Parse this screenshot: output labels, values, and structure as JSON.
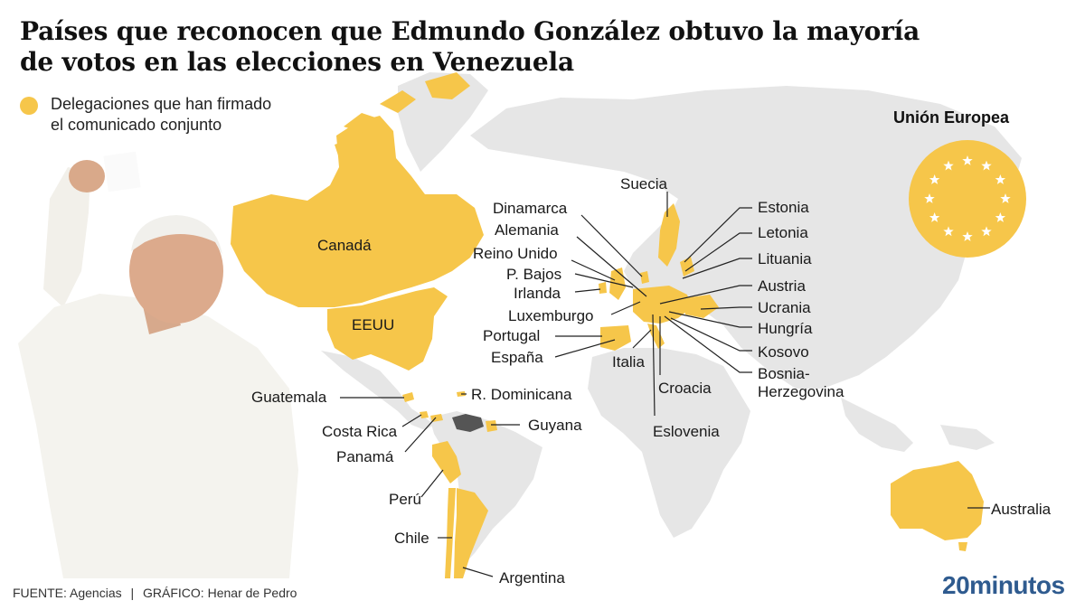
{
  "title": {
    "line1": "Países que reconocen que Edmundo González obtuvo la mayoría",
    "line2": "de votos en las elecciones en Venezuela"
  },
  "legend": {
    "line1": "Delegaciones que han firmado",
    "line2": "el comunicado conjunto",
    "color": "#f6c64a"
  },
  "eu": {
    "title": "Unión Europea",
    "star_color": "#ffffff",
    "star_count": 12
  },
  "colors": {
    "signed": "#f6c64a",
    "land": "#e6e6e6",
    "venezuela": "#555555",
    "leader": "#222222"
  },
  "countries": {
    "canada": "Canadá",
    "eeuu": "EEUU",
    "guatemala": "Guatemala",
    "costa_rica": "Costa Rica",
    "panama": "Panamá",
    "rep_dominicana": "R. Dominicana",
    "guyana": "Guyana",
    "peru": "Perú",
    "chile": "Chile",
    "argentina": "Argentina",
    "suecia": "Suecia",
    "dinamarca": "Dinamarca",
    "alemania": "Alemania",
    "reino_unido": "Reino Unido",
    "p_bajos": "P. Bajos",
    "irlanda": "Irlanda",
    "luxemburgo": "Luxemburgo",
    "portugal": "Portugal",
    "espana": "España",
    "italia": "Italia",
    "croacia": "Croacia",
    "eslovenia": "Eslovenia",
    "estonia": "Estonia",
    "letonia": "Letonia",
    "lituania": "Lituania",
    "austria": "Austria",
    "ucrania": "Ucrania",
    "hungria": "Hungría",
    "kosovo": "Kosovo",
    "bosnia_1": "Bosnia-",
    "bosnia_2": "Herzegovina",
    "australia": "Australia"
  },
  "footer": {
    "source_label": "FUENTE:",
    "source": "Agencias",
    "separator": "|",
    "graphic_label": "GRÁFICO:",
    "graphic": "Henar de Pedro"
  },
  "brand": "20minutos"
}
